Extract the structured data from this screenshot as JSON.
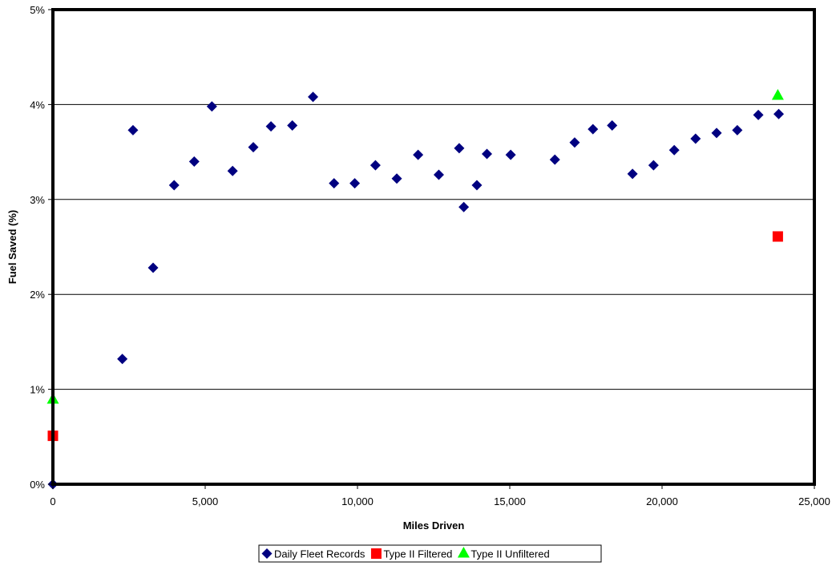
{
  "chart_data": {
    "type": "scatter",
    "xlabel": "Miles Driven",
    "ylabel": "Fuel Saved (%)",
    "xlim": [
      0,
      25000
    ],
    "ylim": [
      0,
      5
    ],
    "x_ticks": [
      0,
      5000,
      10000,
      15000,
      20000,
      25000
    ],
    "x_tick_labels": [
      "0",
      "5,000",
      "10,000",
      "15,000",
      "20,000",
      "25,000"
    ],
    "y_ticks": [
      0,
      1,
      2,
      3,
      4,
      5
    ],
    "y_tick_labels": [
      "0%",
      "1%",
      "2%",
      "3%",
      "4%",
      "5%"
    ],
    "grid": "horizontal",
    "legend_position": "bottom",
    "series": [
      {
        "name": "Daily Fleet Records",
        "marker": "diamond",
        "color": "#000080",
        "points": [
          [
            0,
            0.0
          ],
          [
            2280,
            1.32
          ],
          [
            2630,
            3.73
          ],
          [
            3290,
            2.28
          ],
          [
            3980,
            3.15
          ],
          [
            4640,
            3.4
          ],
          [
            5220,
            3.98
          ],
          [
            5900,
            3.3
          ],
          [
            6580,
            3.55
          ],
          [
            7160,
            3.77
          ],
          [
            7860,
            3.78
          ],
          [
            8540,
            4.08
          ],
          [
            9230,
            3.17
          ],
          [
            9910,
            3.17
          ],
          [
            10590,
            3.36
          ],
          [
            11290,
            3.22
          ],
          [
            11990,
            3.47
          ],
          [
            12670,
            3.26
          ],
          [
            13340,
            3.54
          ],
          [
            13490,
            2.92
          ],
          [
            13920,
            3.15
          ],
          [
            14250,
            3.48
          ],
          [
            15030,
            3.47
          ],
          [
            16480,
            3.42
          ],
          [
            17130,
            3.6
          ],
          [
            17730,
            3.74
          ],
          [
            18360,
            3.78
          ],
          [
            19030,
            3.27
          ],
          [
            19720,
            3.36
          ],
          [
            20400,
            3.52
          ],
          [
            21100,
            3.64
          ],
          [
            21790,
            3.7
          ],
          [
            22470,
            3.73
          ],
          [
            23160,
            3.89
          ],
          [
            23830,
            3.9
          ]
        ]
      },
      {
        "name": "Type II Filtered",
        "marker": "square",
        "color": "#FF0000",
        "points": [
          [
            0,
            0.51
          ],
          [
            23800,
            2.61
          ]
        ]
      },
      {
        "name": "Type II Unfiltered",
        "marker": "triangle",
        "color": "#00FF00",
        "points": [
          [
            0,
            0.9
          ],
          [
            23800,
            4.1
          ]
        ]
      }
    ]
  }
}
